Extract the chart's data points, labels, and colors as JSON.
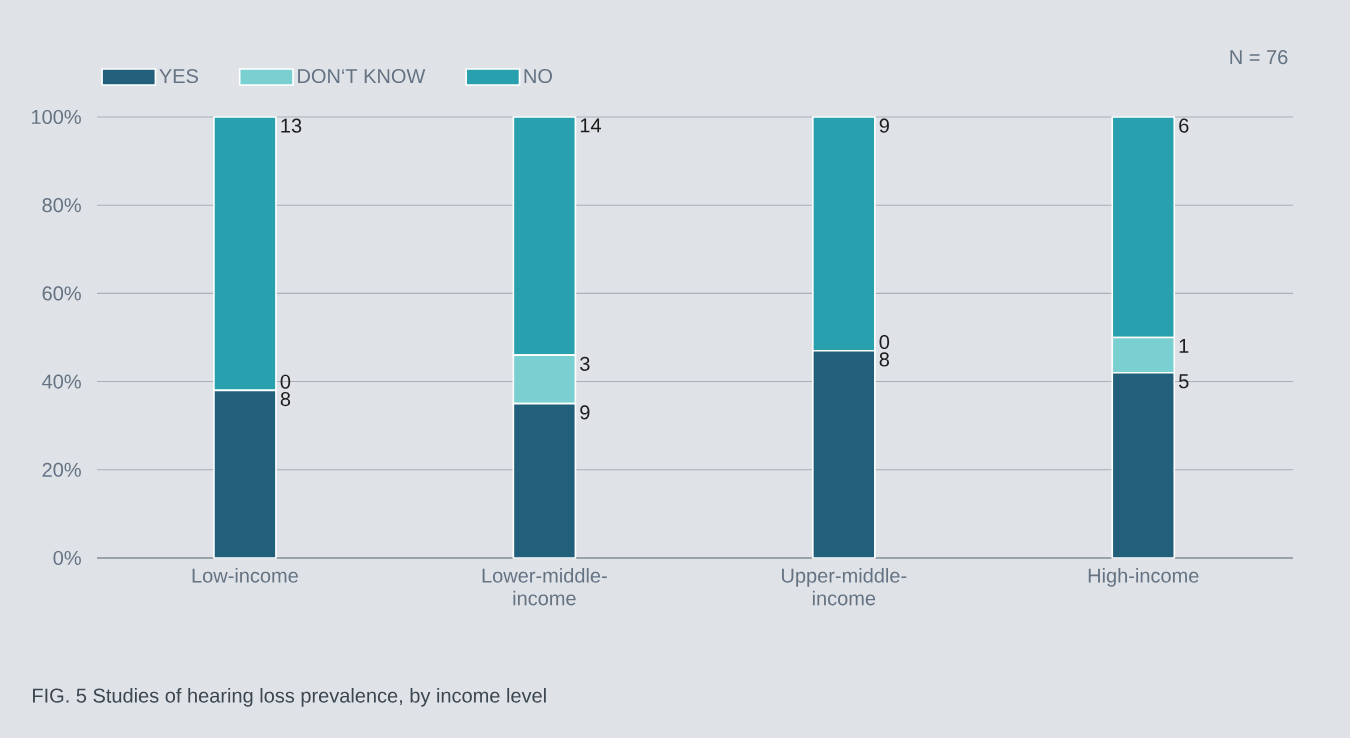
{
  "chart_data": {
    "type": "bar",
    "stacked": true,
    "categories": [
      "Low-income",
      "Lower-middle-income",
      "Upper-middle-income",
      "High-income"
    ],
    "series": [
      {
        "name": "YES",
        "color": "#215f7a",
        "values": [
          38,
          35,
          47,
          42
        ]
      },
      {
        "name": "DON‘T KNOW",
        "color": "#7acfd0",
        "values": [
          0,
          11,
          0,
          8
        ]
      },
      {
        "name": "NO",
        "color": "#28a0ad",
        "values": [
          62,
          54,
          53,
          50
        ]
      }
    ],
    "ylim": [
      0,
      100
    ],
    "yticks": [
      {
        "value": 0,
        "label": "0%"
      },
      {
        "value": 20,
        "label": "20%"
      },
      {
        "value": 40,
        "label": "40%"
      },
      {
        "value": 60,
        "label": "60%"
      },
      {
        "value": 80,
        "label": "80%"
      },
      {
        "value": 100,
        "label": "100%"
      }
    ],
    "grid": "y",
    "legend": "top left",
    "annotations": [
      "N = 76",
      "FIG. 5 Studies of hearing loss prevalence, by income level",
      {
        "text": "0",
        "x": "Low-income",
        "y": 38
      },
      {
        "text": "8",
        "x": "Low-income",
        "y": 38
      },
      {
        "text": "13",
        "x": "Low-income",
        "y": 100
      },
      {
        "text": "9",
        "x": "Lower-middle-income",
        "y": 35
      },
      {
        "text": "3",
        "x": "Lower-middle-income",
        "y": 46
      },
      {
        "text": "14",
        "x": "Lower-middle-income",
        "y": 100
      },
      {
        "text": "0",
        "x": "Upper-middle-income",
        "y": 47
      },
      {
        "text": "8",
        "x": "Upper-middle-income",
        "y": 47
      },
      {
        "text": "9",
        "x": "Upper-middle-income",
        "y": 100
      },
      {
        "text": "1",
        "x": "High-income",
        "y": 50
      },
      {
        "text": "5",
        "x": "High-income",
        "y": 42
      },
      {
        "text": "6",
        "x": "High-income",
        "y": 100
      }
    ]
  }
}
